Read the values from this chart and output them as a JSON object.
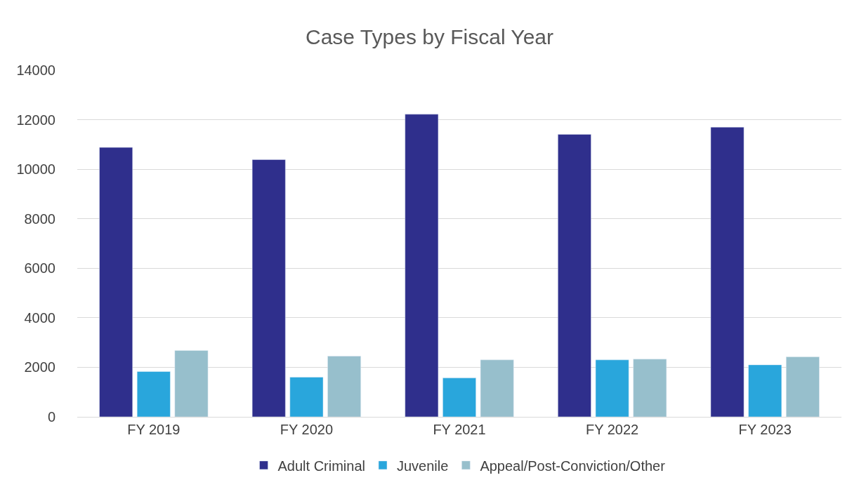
{
  "chart_data": {
    "type": "bar",
    "title": "Case Types by Fiscal Year",
    "categories": [
      "FY 2019",
      "FY 2020",
      "FY 2021",
      "FY 2022",
      "FY 2023"
    ],
    "series": [
      {
        "name": "Adult Criminal",
        "color": "#2f2f8c",
        "values": [
          10880,
          10390,
          12220,
          11410,
          11700
        ]
      },
      {
        "name": "Juvenile",
        "color": "#29a6dc",
        "values": [
          1830,
          1600,
          1570,
          2300,
          2100
        ]
      },
      {
        "name": "Appeal/Post-Conviction/Other",
        "color": "#97bfcc",
        "values": [
          2680,
          2450,
          2300,
          2330,
          2420
        ]
      }
    ],
    "ylim": [
      0,
      14000
    ],
    "yticks": [
      0,
      2000,
      4000,
      6000,
      8000,
      10000,
      12000,
      14000
    ],
    "grid": "y",
    "legend": "bottom"
  }
}
